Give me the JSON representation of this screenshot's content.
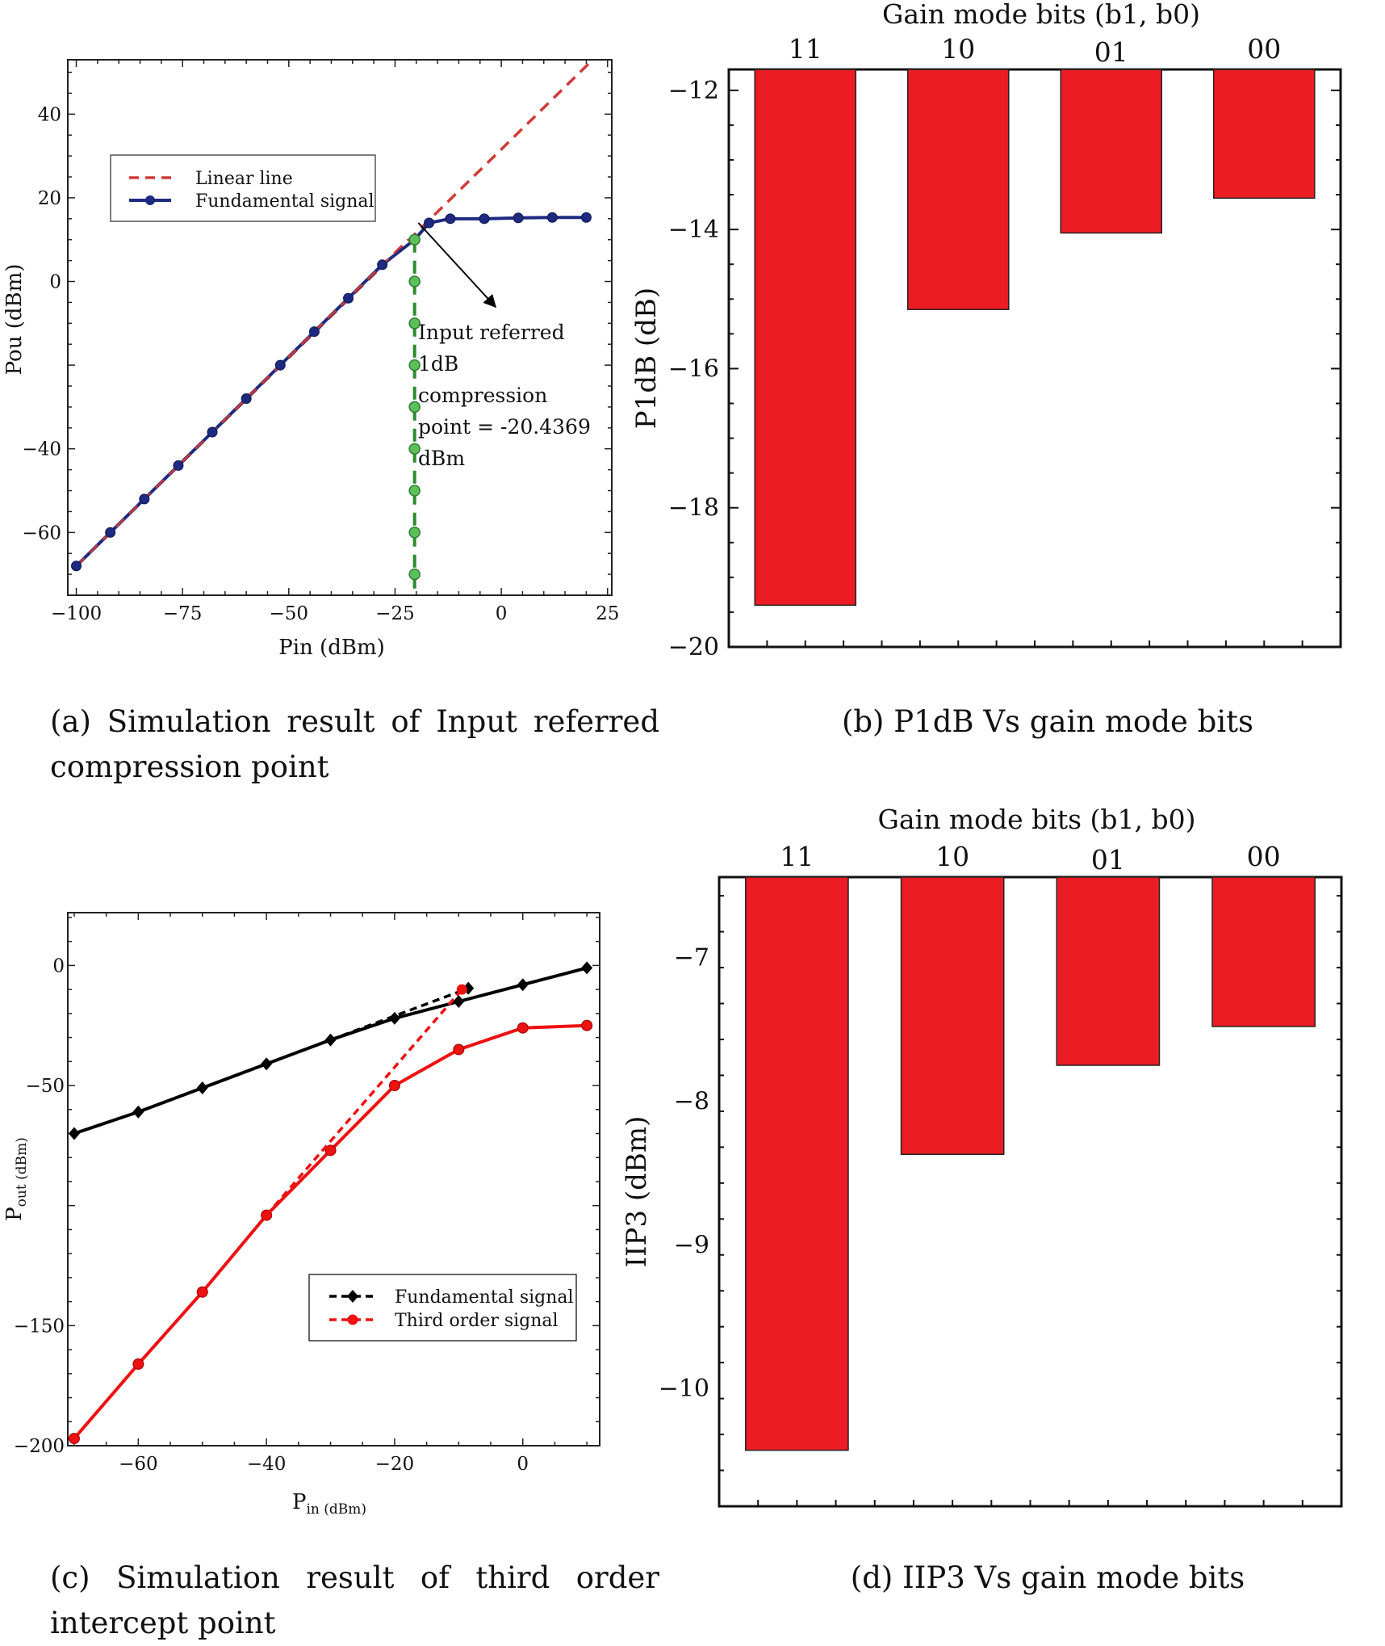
{
  "captions": {
    "a": "(a) Simulation result of Input referred compression point",
    "b": "(b) P1dB Vs gain mode bits",
    "c": "(c) Simulation result of third order intercept point",
    "d": "(d) IIP3 Vs gain mode bits"
  },
  "chart_data": [
    {
      "id": "a",
      "type": "line",
      "xlabel": "Pin (dBm)",
      "ylabel": "Pou (dBm)",
      "xlim": [
        -102,
        26
      ],
      "ylim": [
        -75,
        53
      ],
      "xticks": [
        -100,
        -75,
        -50,
        -25,
        0,
        25
      ],
      "yticks": [
        40,
        20,
        0,
        -40,
        -60
      ],
      "legend": {
        "position": "upper-left",
        "entries": [
          "Linear line",
          "Fundamental signal"
        ]
      },
      "series": [
        {
          "name": "Linear line",
          "style": "dashed",
          "color": "#d23a35",
          "x": [
            -100,
            21.5
          ],
          "y": [
            -68,
            53
          ]
        },
        {
          "name": "Fundamental signal",
          "style": "solid-markers",
          "color": "#1d2a80",
          "x": [
            -100,
            -92,
            -84,
            -76,
            -68,
            -60,
            -52,
            -44,
            -36,
            -28,
            -20.4,
            -17,
            -12,
            -4,
            4,
            12,
            20
          ],
          "y": [
            -68,
            -60,
            -52,
            -44,
            -36,
            -28,
            -20,
            -12,
            -4,
            4,
            10,
            14,
            15,
            15,
            15.2,
            15.3,
            15.3
          ]
        },
        {
          "name": "1dB point marker",
          "style": "dashed-markers",
          "color": "#2e8b2e",
          "x": [
            -20.4,
            -20.4,
            -20.4,
            -20.4,
            -20.4,
            -20.4,
            -20.4,
            -20.4,
            -20.4
          ],
          "y": [
            10,
            0,
            -10,
            -20,
            -30,
            -40,
            -50,
            -60,
            -70
          ]
        }
      ],
      "annotation": {
        "lines": [
          "Input referred",
          "1dB",
          "compression",
          "point = -20.4369",
          "dBm"
        ],
        "arrow_from": [
          -20.4,
          10
        ]
      }
    },
    {
      "id": "b",
      "type": "bar",
      "top_label": "Gain mode bits (b1, b0)",
      "ylabel": "P1dB (dB)",
      "categories": [
        "11",
        "10",
        "01",
        "00"
      ],
      "values": [
        -19.4,
        -15.15,
        -14.05,
        -13.55
      ],
      "bar_base": -11.7,
      "ylim": [
        -20,
        -11.7
      ],
      "yticks": [
        -12,
        -14,
        -16,
        -18,
        -20
      ],
      "color": "#ec1c24"
    },
    {
      "id": "c",
      "type": "line",
      "xlabel_main": "P",
      "xlabel_sub": "in (dBm)",
      "ylabel_main": "P",
      "ylabel_sub": "out (dBm)",
      "xlim": [
        -71,
        12
      ],
      "ylim": [
        -200,
        22
      ],
      "xticks": [
        -60,
        -40,
        -20,
        0
      ],
      "yticks": [
        0,
        -50,
        -150,
        -200
      ],
      "legend": {
        "position": "lower-right",
        "entries": [
          "Fundamental signal",
          "Third order signal"
        ]
      },
      "series": [
        {
          "name": "Fundamental signal",
          "color": "#000000",
          "marker": "diamond",
          "x": [
            -70,
            -60,
            -50,
            -40,
            -30,
            -20,
            -10,
            0,
            10
          ],
          "y": [
            -70,
            -61,
            -51,
            -41,
            -31,
            -22,
            -15,
            -8,
            -1
          ]
        },
        {
          "name": "Fundamental extrapolation",
          "color": "#000000",
          "style": "dashed",
          "x": [
            -30,
            -8.5
          ],
          "y": [
            -31,
            -9.5
          ]
        },
        {
          "name": "Third order signal",
          "color": "#ee1111",
          "marker": "circle",
          "x": [
            -70,
            -60,
            -50,
            -40,
            -30,
            -20,
            -10,
            0,
            10
          ],
          "y": [
            -197,
            -166,
            -136,
            -104,
            -77,
            -50,
            -35,
            -26,
            -25
          ]
        },
        {
          "name": "Third order extrapolation",
          "color": "#ee1111",
          "style": "dashed",
          "x": [
            -40,
            -9.5
          ],
          "y": [
            -104,
            -10
          ]
        }
      ]
    },
    {
      "id": "d",
      "type": "bar",
      "top_label": "Gain mode bits (b1, b0)",
      "ylabel": "IIP3 (dBm)",
      "categories": [
        "11",
        "10",
        "01",
        "00"
      ],
      "values": [
        -10.43,
        -8.37,
        -7.75,
        -7.48
      ],
      "bar_base": -6.44,
      "ylim": [
        -10.82,
        -6.44
      ],
      "yticks": [
        -7,
        -8,
        -9,
        -10
      ],
      "color": "#ec1c24"
    }
  ]
}
